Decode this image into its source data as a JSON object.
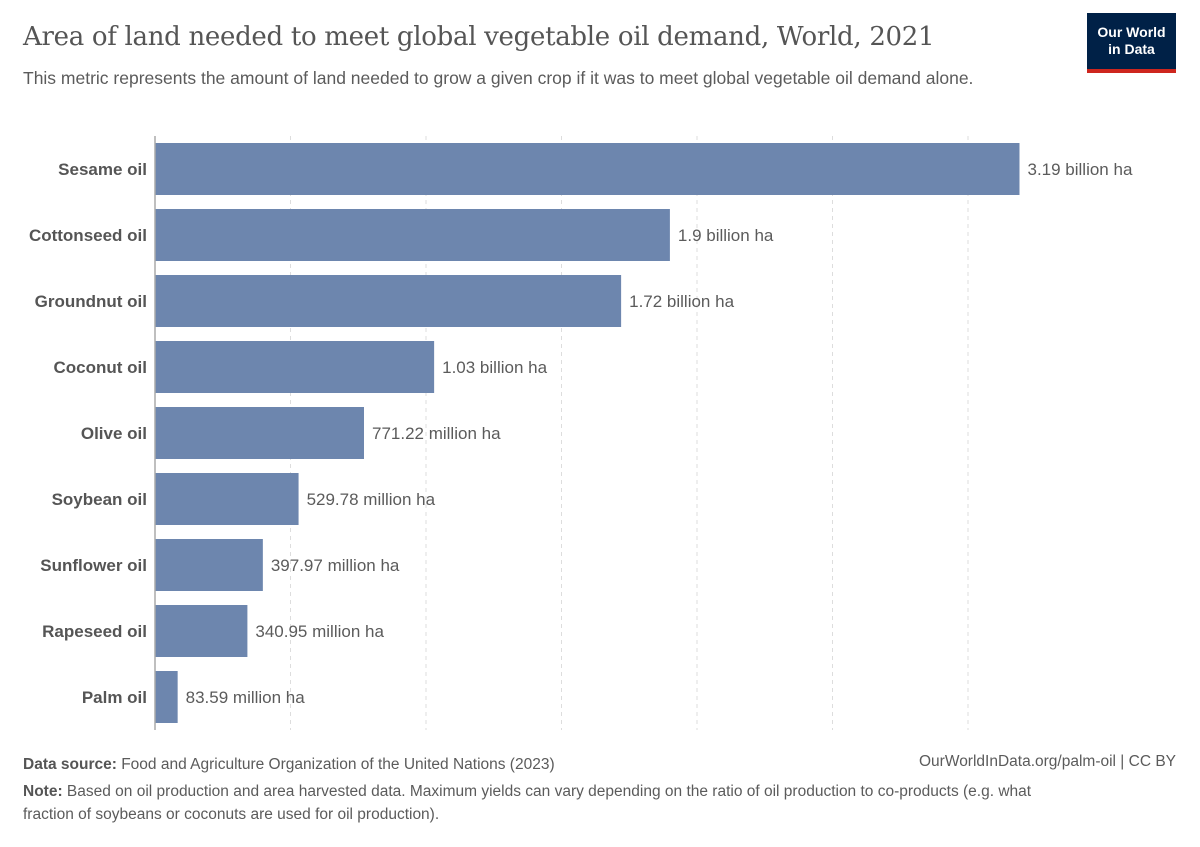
{
  "header": {
    "title": "Area of land needed to meet global vegetable oil demand, World, 2021",
    "subtitle": "This metric represents the amount of land needed to grow a given crop if it was to meet global vegetable oil demand alone.",
    "logo_line1": "Our World",
    "logo_line2": "in Data"
  },
  "footer": {
    "source_label": "Data source:",
    "source_text": "Food and Agriculture Organization of the United Nations (2023)",
    "license": "OurWorldInData.org/palm-oil | CC BY",
    "note_label": "Note:",
    "note_text": "Based on oil production and area harvested data. Maximum yields can vary depending on the ratio of oil production to co-products (e.g. what fraction of soybeans or coconuts are used for oil production)."
  },
  "colors": {
    "bar": "#6d86ae",
    "logo_bg": "#002147",
    "logo_accent": "#ce261e"
  },
  "chart_data": {
    "type": "bar",
    "orientation": "horizontal",
    "title": "Area of land needed to meet global vegetable oil demand, World, 2021",
    "xlabel": "",
    "ylabel": "",
    "unit": "hectares",
    "xlim": [
      0,
      3500000000
    ],
    "grid_step": 500000000,
    "grid": true,
    "categories": [
      "Sesame oil",
      "Cottonseed oil",
      "Groundnut oil",
      "Coconut oil",
      "Olive oil",
      "Soybean oil",
      "Sunflower oil",
      "Rapeseed oil",
      "Palm oil"
    ],
    "values": [
      3190000000,
      1900000000,
      1720000000,
      1030000000,
      771220000,
      529780000,
      397970000,
      340950000,
      83590000
    ],
    "labels": [
      "3.19 billion ha",
      "1.9 billion ha",
      "1.72 billion ha",
      "1.03 billion ha",
      "771.22 million ha",
      "529.78 million ha",
      "397.97 million ha",
      "340.95 million ha",
      "83.59 million ha"
    ]
  }
}
